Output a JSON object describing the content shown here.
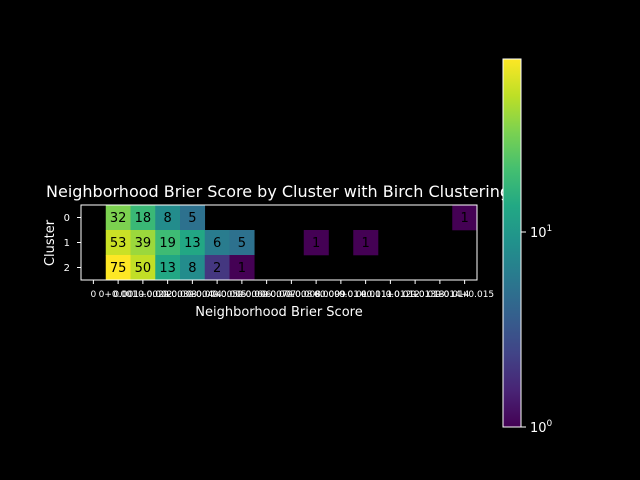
{
  "chart_data": {
    "type": "heatmap",
    "title": "Neighborhood Brier Score by Cluster with Birch Clustering",
    "xlabel": "Neighborhood Brier Score",
    "ylabel": "Cluster",
    "x_tick_labels": [
      "0",
      "0+0.001",
      "0.001+0.002",
      "0.002+0.003",
      "0.003+0.004",
      "0.004+0.005",
      "0.005+0.006",
      "0.006+0.007",
      "0.007+0.008",
      "0.008+0.009",
      "0.009+0.01",
      "0.01+0.011",
      "0.011+0.012",
      "0.012+0.013",
      "0.013+0.014",
      "0.014+0.015"
    ],
    "rows": [
      "0",
      "1",
      "2"
    ],
    "cells": [
      {
        "row": "0",
        "col": 1,
        "value": 32
      },
      {
        "row": "0",
        "col": 2,
        "value": 18
      },
      {
        "row": "0",
        "col": 3,
        "value": 8
      },
      {
        "row": "0",
        "col": 4,
        "value": 5
      },
      {
        "row": "0",
        "col": 15,
        "value": 1
      },
      {
        "row": "1",
        "col": 1,
        "value": 53
      },
      {
        "row": "1",
        "col": 2,
        "value": 39
      },
      {
        "row": "1",
        "col": 3,
        "value": 19
      },
      {
        "row": "1",
        "col": 4,
        "value": 13
      },
      {
        "row": "1",
        "col": 5,
        "value": 6
      },
      {
        "row": "1",
        "col": 6,
        "value": 5
      },
      {
        "row": "1",
        "col": 9,
        "value": 1
      },
      {
        "row": "1",
        "col": 11,
        "value": 1
      },
      {
        "row": "2",
        "col": 1,
        "value": 75
      },
      {
        "row": "2",
        "col": 2,
        "value": 50
      },
      {
        "row": "2",
        "col": 3,
        "value": 13
      },
      {
        "row": "2",
        "col": 4,
        "value": 8
      },
      {
        "row": "2",
        "col": 5,
        "value": 2
      },
      {
        "row": "2",
        "col": 6,
        "value": 1
      }
    ],
    "colorbar": {
      "scale": "log",
      "range": [
        1,
        75
      ],
      "colormap": "viridis",
      "tick_labels": [
        {
          "base": "10",
          "exp": "0",
          "value": 1
        },
        {
          "base": "10",
          "exp": "1",
          "value": 10
        }
      ]
    },
    "background": "#000000",
    "foreground": "#ffffff"
  }
}
